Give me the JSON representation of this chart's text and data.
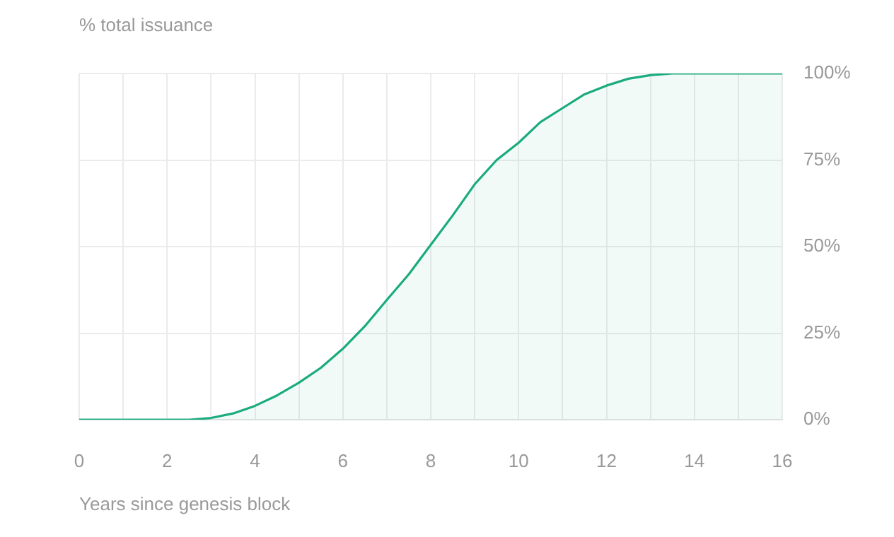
{
  "chart_data": {
    "type": "area",
    "title": "% total issuance",
    "xlabel": "Years since genesis block",
    "x": [
      0,
      1,
      2,
      2.5,
      3,
      3.5,
      4,
      4.5,
      5,
      5.5,
      6,
      6.5,
      7,
      7.5,
      8,
      8.5,
      9,
      9.5,
      10,
      10.5,
      11,
      11.5,
      12,
      12.5,
      13,
      13.5,
      14,
      15,
      16
    ],
    "series": [
      {
        "color": "#1aab7f",
        "values": [
          0,
          0,
          0,
          0,
          0.5,
          1.8,
          4,
          7,
          10.7,
          15,
          20.5,
          27,
          34.6,
          42,
          50.5,
          59,
          68,
          75,
          80,
          86,
          90,
          94,
          96.5,
          98.5,
          99.5,
          100,
          100,
          100,
          100
        ]
      }
    ],
    "xlim": [
      0,
      16
    ],
    "xticks": [
      0,
      {
        "value": 1,
        "label": null
      },
      2,
      {
        "value": 3,
        "label": null
      },
      4,
      {
        "value": 5,
        "label": null
      },
      6,
      {
        "value": 7,
        "label": null
      },
      8,
      {
        "value": 9,
        "label": null
      },
      10,
      {
        "value": 11,
        "label": null
      },
      12,
      {
        "value": 13,
        "label": null
      },
      14,
      {
        "value": 15,
        "label": null
      },
      16
    ],
    "ylim": [
      0,
      100
    ],
    "yticks": [
      {
        "value": 0,
        "label": "0%"
      },
      {
        "value": 25,
        "label": "25%"
      },
      {
        "value": 50,
        "label": "50%"
      },
      {
        "value": 75,
        "label": "75%"
      },
      {
        "value": 100,
        "label": "100%"
      }
    ],
    "grid": true,
    "legend": false,
    "marker": "none",
    "line_style": "solid"
  }
}
